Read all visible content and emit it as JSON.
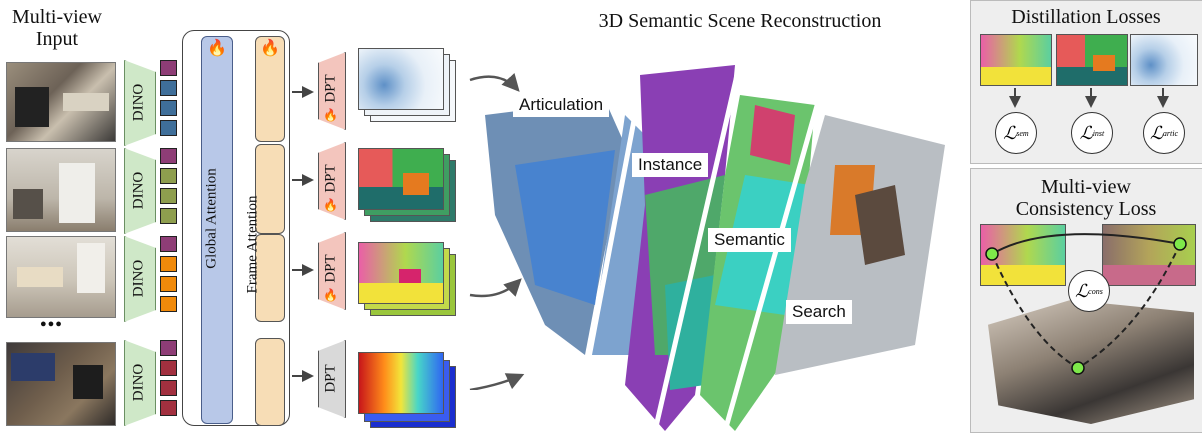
{
  "input_title": "Multi-view\nInput",
  "ellipsis": "●●●",
  "dino_label": "DINO",
  "global_attention_label": "Global Attention",
  "frame_attention_label": "Frame Attention",
  "dpt_label": "DPT",
  "reconstruction_title": "3D Semantic Scene Reconstruction",
  "segments": [
    "Articulation",
    "Instance",
    "Semantic",
    "Search"
  ],
  "distill": {
    "title": "Distillation Losses",
    "losses": [
      {
        "symbol": "ℒ",
        "sub": "sem"
      },
      {
        "symbol": "ℒ",
        "sub": "inst"
      },
      {
        "symbol": "ℒ",
        "sub": "artic"
      }
    ]
  },
  "consistency": {
    "title": "Multi-view\nConsistency Loss",
    "loss": {
      "symbol": "ℒ",
      "sub": "cons"
    }
  },
  "colors": {
    "token_purple": "#8e3d76",
    "token_blue": "#3f6f9a",
    "token_olive": "#8e9e4e",
    "token_orange": "#f08a0b",
    "token_red": "#a2303f",
    "global_bar": "#b8c8e8",
    "frame_bar": "#f7ddb6",
    "dino_green": "#cfe8c8",
    "dpt_pink": "#f3c5bd",
    "dpt_gray": "#d9d9d9"
  }
}
